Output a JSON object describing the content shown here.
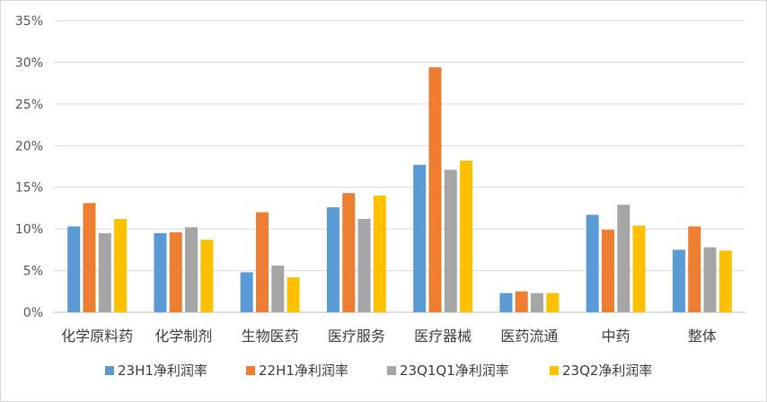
{
  "chart_data": {
    "type": "bar",
    "categories": [
      "化学原料药",
      "化学制剂",
      "生物医药",
      "医疗服务",
      "医疗器械",
      "医药流通",
      "中药",
      "整体"
    ],
    "series": [
      {
        "name": "23H1净利润率",
        "color": "#5b9bd5",
        "values": [
          10.3,
          9.5,
          4.8,
          12.6,
          17.7,
          2.3,
          11.7,
          7.5
        ]
      },
      {
        "name": "22H1净利润率",
        "color": "#ed7d31",
        "values": [
          13.1,
          9.6,
          12.0,
          14.3,
          29.4,
          2.5,
          9.9,
          10.3
        ]
      },
      {
        "name": "23Q1Q1净利润率",
        "color": "#a5a5a5",
        "values": [
          9.5,
          10.2,
          5.6,
          11.2,
          17.1,
          2.3,
          12.9,
          7.8
        ]
      },
      {
        "name": "23Q2净利润率",
        "color": "#ffc000",
        "values": [
          11.2,
          8.7,
          4.2,
          14.0,
          18.2,
          2.3,
          10.4,
          7.4
        ]
      }
    ],
    "y_ticks": [
      "0%",
      "5%",
      "10%",
      "15%",
      "20%",
      "25%",
      "30%",
      "35%"
    ],
    "ylim": [
      0,
      35
    ],
    "y_unit": "%",
    "grid": true,
    "legend_position": "bottom",
    "title": "",
    "xlabel": "",
    "ylabel": ""
  }
}
